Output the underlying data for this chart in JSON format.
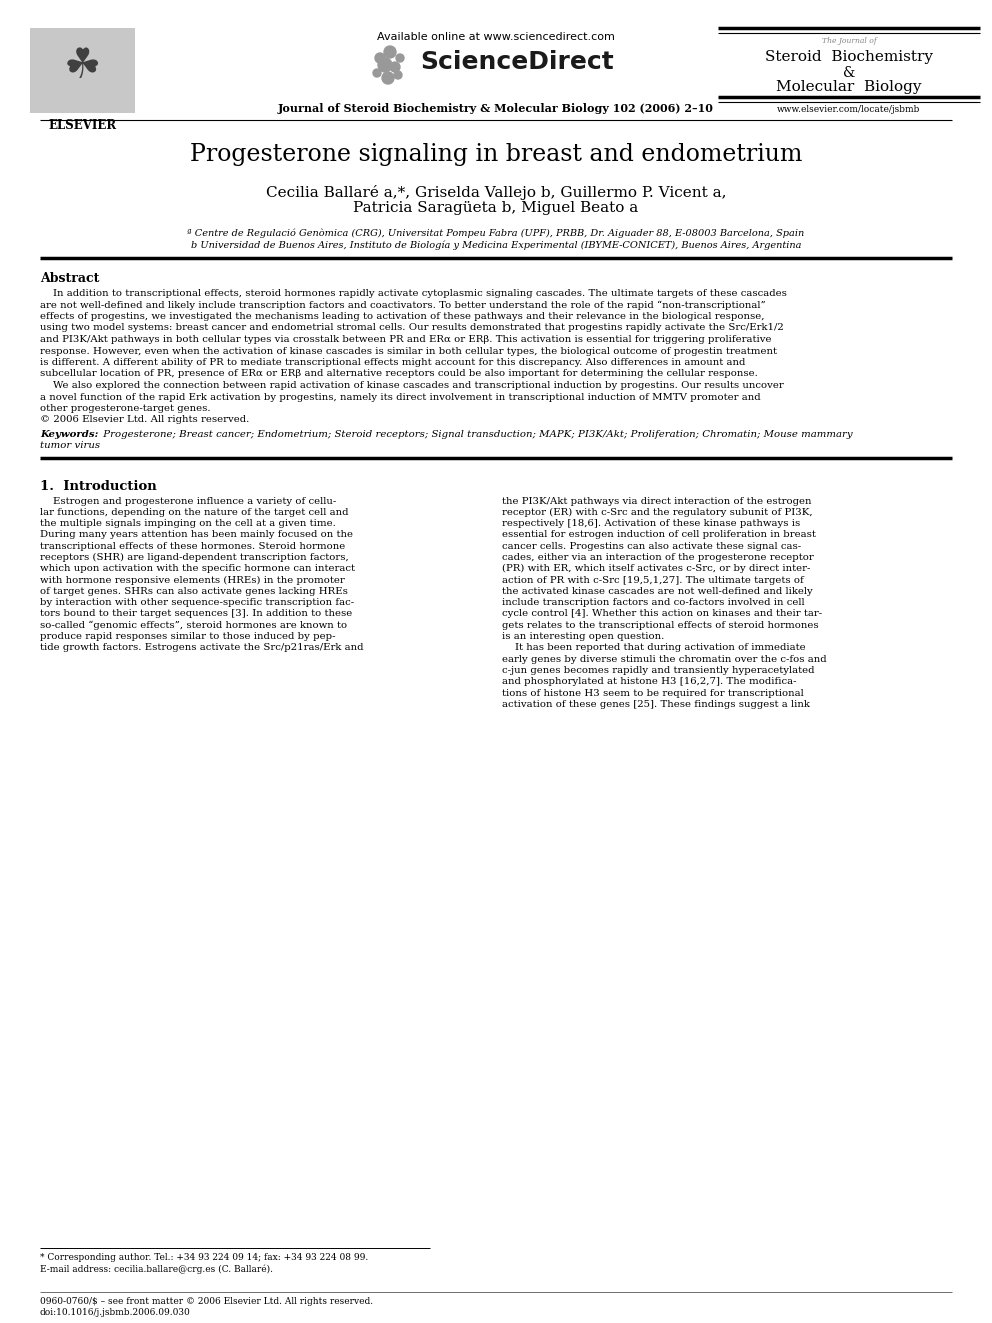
{
  "title": "Progesterone signaling in breast and endometrium",
  "journal_line": "Journal of Steroid Biochemistry & Molecular Biology 102 (2006) 2–10",
  "available_online": "Available online at www.sciencedirect.com",
  "sciencedirect_text": "ScienceDirect",
  "journal_title_right_small": "The Journal of",
  "journal_title_right1": "Steroid  Biochemistry",
  "journal_title_right2": "&",
  "journal_title_right3": "Molecular  Biology",
  "website": "www.elsevier.com/locate/jsbmb",
  "elsevier": "ELSEVIER",
  "authors_line1": "Cecilia Ballaré a,*, Griselda Vallejo b, Guillermo P. Vicent a,",
  "authors_line2": "Patricia Saragüeta b, Miguel Beato a",
  "affil_a": "ª Centre de Regulació Genòmica (CRG), Universitat Pompeu Fabra (UPF), PRBB, Dr. Aiguader 88, E-08003 Barcelona, Spain",
  "affil_b": "b Universidad de Buenos Aires, Instituto de Biología y Medicina Experimental (IBYME-CONICET), Buenos Aires, Argentina",
  "abstract_heading": "Abstract",
  "keywords_label": "Keywords:",
  "keywords_text": " Progesterone; Breast cancer; Endometrium; Steroid receptors; Signal transduction; MAPK; PI3K/Akt; Proliferation; Chromatin; Mouse mammary",
  "keywords_line2": "tumor virus",
  "section1_heading": "1.  Introduction",
  "footnote_star": "* Corresponding author. Tel.: +34 93 224 09 14; fax: +34 93 224 08 99.",
  "footnote_email": "E-mail address: cecilia.ballare@crg.es (C. Ballaré).",
  "footnote_issn": "0960-0760/$ – see front matter © 2006 Elsevier Ltd. All rights reserved.",
  "footnote_doi": "doi:10.1016/j.jsbmb.2006.09.030",
  "abstract_lines": [
    "    In addition to transcriptional effects, steroid hormones rapidly activate cytoplasmic signaling cascades. The ultimate targets of these cascades",
    "are not well-defined and likely include transcription factors and coactivators. To better understand the role of the rapid “non-transcriptional”",
    "effects of progestins, we investigated the mechanisms leading to activation of these pathways and their relevance in the biological response,",
    "using two model systems: breast cancer and endometrial stromal cells. Our results demonstrated that progestins rapidly activate the Src/Erk1/2",
    "and PI3K/Akt pathways in both cellular types via crosstalk between PR and ERα or ERβ. This activation is essential for triggering proliferative",
    "response. However, even when the activation of kinase cascades is similar in both cellular types, the biological outcome of progestin treatment",
    "is different. A different ability of PR to mediate transcriptional effects might account for this discrepancy. Also differences in amount and",
    "subcellular location of PR, presence of ERα or ERβ and alternative receptors could be also important for determining the cellular response.",
    "    We also explored the connection between rapid activation of kinase cascades and transcriptional induction by progestins. Our results uncover",
    "a novel function of the rapid Erk activation by progestins, namely its direct involvement in transcriptional induction of MMTV promoter and",
    "other progesterone-target genes.",
    "© 2006 Elsevier Ltd. All rights reserved."
  ],
  "intro_col1_lines": [
    "    Estrogen and progesterone influence a variety of cellu-",
    "lar functions, depending on the nature of the target cell and",
    "the multiple signals impinging on the cell at a given time.",
    "During many years attention has been mainly focused on the",
    "transcriptional effects of these hormones. Steroid hormone",
    "receptors (SHR) are ligand-dependent transcription factors,",
    "which upon activation with the specific hormone can interact",
    "with hormone responsive elements (HREs) in the promoter",
    "of target genes. SHRs can also activate genes lacking HREs",
    "by interaction with other sequence-specific transcription fac-",
    "tors bound to their target sequences [3]. In addition to these",
    "so-called “genomic effects”, steroid hormones are known to",
    "produce rapid responses similar to those induced by pep-",
    "tide growth factors. Estrogens activate the Src/p21ras/Erk and"
  ],
  "intro_col2_lines": [
    "the PI3K/Akt pathways via direct interaction of the estrogen",
    "receptor (ER) with c-Src and the regulatory subunit of PI3K,",
    "respectively [18,6]. Activation of these kinase pathways is",
    "essential for estrogen induction of cell proliferation in breast",
    "cancer cells. Progestins can also activate these signal cas-",
    "cades, either via an interaction of the progesterone receptor",
    "(PR) with ER, which itself activates c-Src, or by direct inter-",
    "action of PR with c-Src [19,5,1,27]. The ultimate targets of",
    "the activated kinase cascades are not well-defined and likely",
    "include transcription factors and co-factors involved in cell",
    "cycle control [4]. Whether this action on kinases and their tar-",
    "gets relates to the transcriptional effects of steroid hormones",
    "is an interesting open question.",
    "    It has been reported that during activation of immediate",
    "early genes by diverse stimuli the chromatin over the c-fos and",
    "c-jun genes becomes rapidly and transiently hyperacetylated",
    "and phosphorylated at histone H3 [16,2,7]. The modifica-",
    "tions of histone H3 seem to be required for transcriptional",
    "activation of these genes [25]. These findings suggest a link"
  ],
  "bg_color": "#ffffff"
}
